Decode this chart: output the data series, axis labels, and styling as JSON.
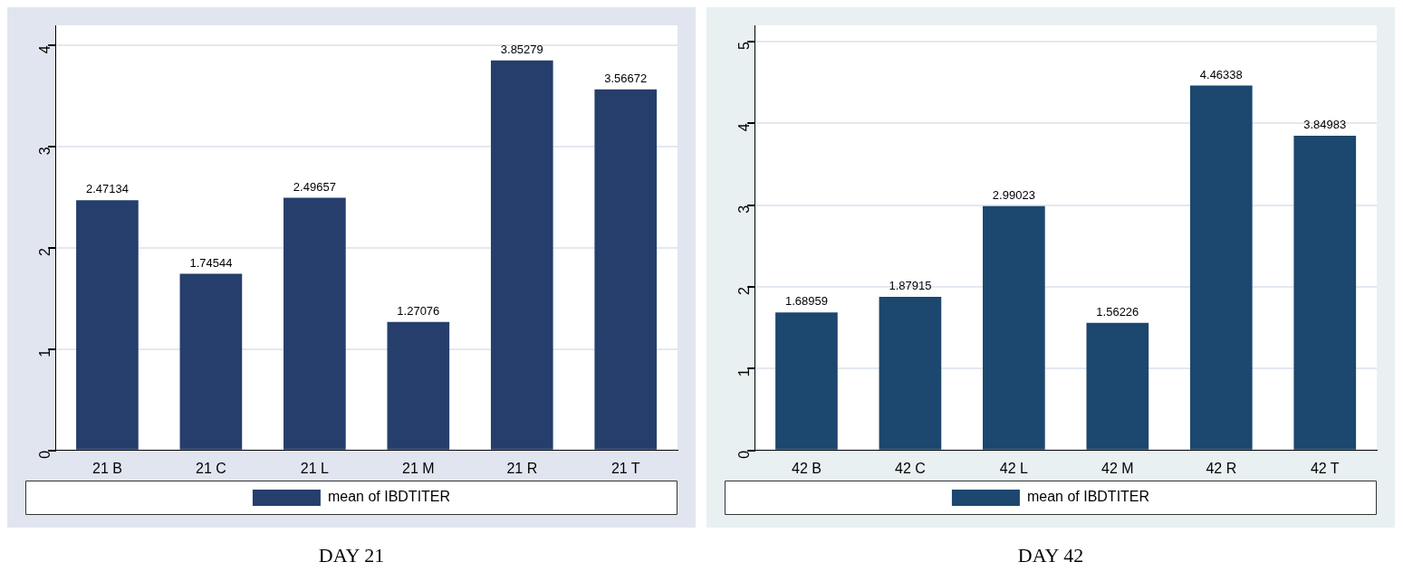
{
  "chart_data": [
    {
      "type": "bar",
      "categories": [
        "21 B",
        "21 C",
        "21 L",
        "21 M",
        "21 R",
        "21 T"
      ],
      "series": [
        {
          "name": "mean of IBDTITER",
          "color": "#263e6c",
          "values": [
            2.47134,
            1.74544,
            2.49657,
            1.27076,
            3.85279,
            3.56672
          ]
        }
      ],
      "ylim": [
        0,
        4.2
      ],
      "yticks": [
        0,
        1,
        2,
        3,
        4
      ],
      "grid": "y",
      "legend": "bottom",
      "data_labels": true,
      "annotations": [
        "DAY 21"
      ]
    },
    {
      "type": "bar",
      "categories": [
        "42 B",
        "42 C",
        "42 L",
        "42 M",
        "42 R",
        "42 T"
      ],
      "series": [
        {
          "name": "mean of IBDTITER",
          "color": "#1c476e",
          "values": [
            1.68959,
            1.87915,
            2.99023,
            1.56226,
            4.46338,
            3.84983
          ]
        }
      ],
      "ylim": [
        0,
        5.2
      ],
      "yticks": [
        0,
        1,
        2,
        3,
        4,
        5
      ],
      "grid": "y",
      "legend": "bottom",
      "data_labels": true,
      "annotations": [
        "DAY 42"
      ]
    }
  ]
}
